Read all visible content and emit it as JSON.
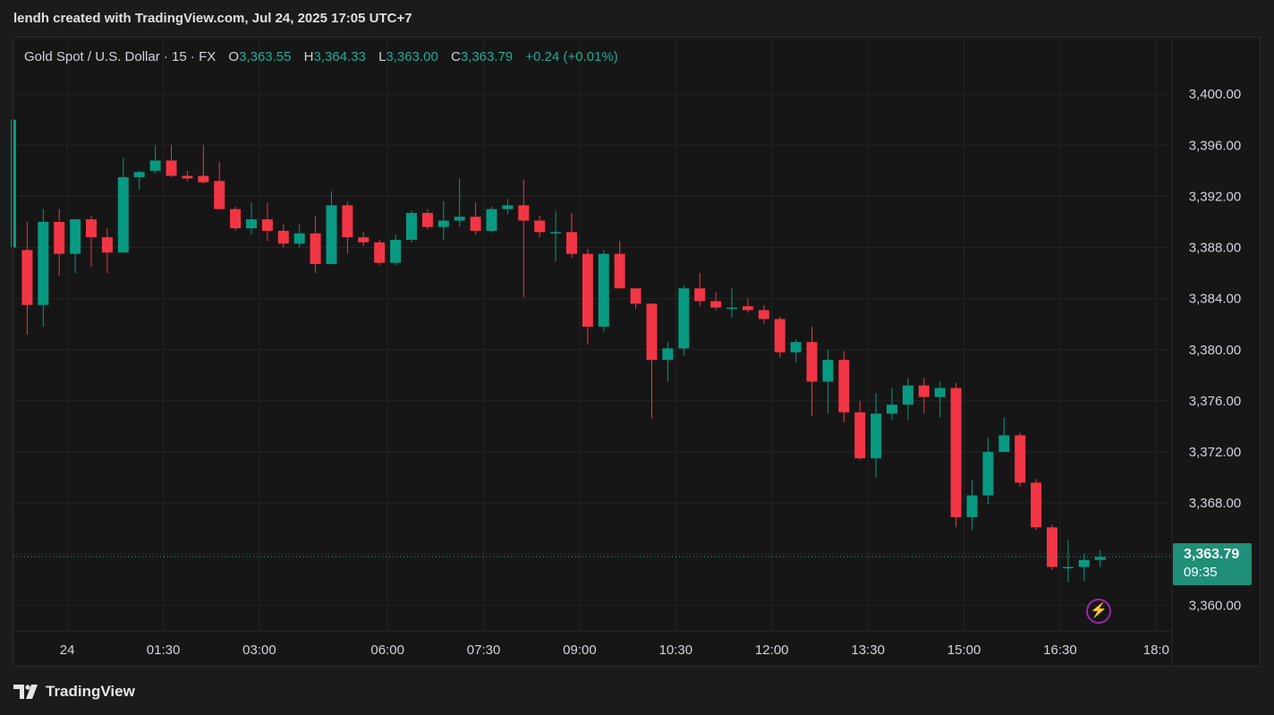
{
  "header": {
    "caption": "lendh created with TradingView.com, Jul 24, 2025 17:05 UTC+7"
  },
  "legend": {
    "symbol": "Gold Spot / U.S. Dollar · 15 · FX",
    "o_label": "O",
    "o_value": "3,363.55",
    "h_label": "H",
    "h_value": "3,364.33",
    "l_label": "L",
    "l_value": "3,363.00",
    "c_label": "C",
    "c_value": "3,363.79",
    "change": "+0.24 (+0.01%)"
  },
  "price_tag": {
    "price": "3,363.79",
    "countdown": "09:35"
  },
  "footer": {
    "brand": "TradingView"
  },
  "colors": {
    "up": "#089981",
    "down": "#f23645",
    "background": "#161616",
    "grid": "#242424",
    "accent": "#1f8f78"
  },
  "icons": {
    "footer_logo": "tradingview-logo-icon",
    "alert": "lightning-icon"
  },
  "chart_data": {
    "type": "candlestick",
    "interval": "15",
    "ylim": [
      3358,
      3404
    ],
    "y_ticks": [
      3360,
      3364,
      3368,
      3372,
      3376,
      3380,
      3384,
      3388,
      3392,
      3396,
      3400
    ],
    "y_tick_labels": [
      "3,360.00",
      "3,364.00",
      "3,368.00",
      "3,372.00",
      "3,376.00",
      "3,380.00",
      "3,384.00",
      "3,388.00",
      "3,392.00",
      "3,396.00",
      "3,400.00"
    ],
    "x_ticks": [
      {
        "label": "24",
        "index": 3.5
      },
      {
        "label": "01:30",
        "index": 9.5
      },
      {
        "label": "03:00",
        "index": 15.5
      },
      {
        "label": "06:00",
        "index": 23.5
      },
      {
        "label": "07:30",
        "index": 29.5
      },
      {
        "label": "09:00",
        "index": 35.5
      },
      {
        "label": "10:30",
        "index": 41.5
      },
      {
        "label": "12:00",
        "index": 47.5
      },
      {
        "label": "13:30",
        "index": 53.5
      },
      {
        "label": "15:00",
        "index": 59.5
      },
      {
        "label": "16:30",
        "index": 65.5
      },
      {
        "label": "18:0",
        "index": 71.5
      }
    ],
    "last_price": 3363.79,
    "candles": [
      {
        "o": 3388.0,
        "h": 3398.0,
        "l": 3388.0,
        "c": 3398.0
      },
      {
        "o": 3387.8,
        "h": 3390.0,
        "l": 3381.2,
        "c": 3383.5
      },
      {
        "o": 3383.5,
        "h": 3391.0,
        "l": 3381.8,
        "c": 3390.0
      },
      {
        "o": 3390.0,
        "h": 3391.0,
        "l": 3385.8,
        "c": 3387.5
      },
      {
        "o": 3387.5,
        "h": 3390.2,
        "l": 3386.0,
        "c": 3390.2
      },
      {
        "o": 3390.2,
        "h": 3390.5,
        "l": 3386.5,
        "c": 3388.8
      },
      {
        "o": 3388.8,
        "h": 3389.5,
        "l": 3386.0,
        "c": 3387.6
      },
      {
        "o": 3387.6,
        "h": 3395.0,
        "l": 3387.6,
        "c": 3393.5
      },
      {
        "o": 3393.5,
        "h": 3394.0,
        "l": 3392.5,
        "c": 3393.9
      },
      {
        "o": 3394.0,
        "h": 3396.0,
        "l": 3393.8,
        "c": 3394.8
      },
      {
        "o": 3394.8,
        "h": 3396.0,
        "l": 3393.5,
        "c": 3393.6
      },
      {
        "o": 3393.6,
        "h": 3394.0,
        "l": 3393.2,
        "c": 3393.4
      },
      {
        "o": 3393.6,
        "h": 3396.0,
        "l": 3393.0,
        "c": 3393.1
      },
      {
        "o": 3393.2,
        "h": 3394.7,
        "l": 3391.0,
        "c": 3391.0
      },
      {
        "o": 3391.0,
        "h": 3391.2,
        "l": 3389.3,
        "c": 3389.5
      },
      {
        "o": 3389.5,
        "h": 3391.5,
        "l": 3389.0,
        "c": 3390.2
      },
      {
        "o": 3390.2,
        "h": 3391.5,
        "l": 3388.5,
        "c": 3389.3
      },
      {
        "o": 3389.3,
        "h": 3389.8,
        "l": 3388.0,
        "c": 3388.3
      },
      {
        "o": 3388.3,
        "h": 3389.8,
        "l": 3388.0,
        "c": 3389.1
      },
      {
        "o": 3389.1,
        "h": 3390.5,
        "l": 3386.0,
        "c": 3386.7
      },
      {
        "o": 3386.7,
        "h": 3392.4,
        "l": 3386.7,
        "c": 3391.3
      },
      {
        "o": 3391.3,
        "h": 3391.6,
        "l": 3387.5,
        "c": 3388.8
      },
      {
        "o": 3388.8,
        "h": 3389.2,
        "l": 3388.1,
        "c": 3388.4
      },
      {
        "o": 3388.4,
        "h": 3388.6,
        "l": 3386.6,
        "c": 3386.8
      },
      {
        "o": 3386.8,
        "h": 3389.0,
        "l": 3386.6,
        "c": 3388.6
      },
      {
        "o": 3388.6,
        "h": 3390.9,
        "l": 3388.4,
        "c": 3390.7
      },
      {
        "o": 3390.7,
        "h": 3391.0,
        "l": 3389.4,
        "c": 3389.6
      },
      {
        "o": 3389.6,
        "h": 3391.6,
        "l": 3388.6,
        "c": 3390.1
      },
      {
        "o": 3390.1,
        "h": 3393.4,
        "l": 3389.6,
        "c": 3390.4
      },
      {
        "o": 3390.4,
        "h": 3391.5,
        "l": 3389.0,
        "c": 3389.3
      },
      {
        "o": 3389.3,
        "h": 3391.2,
        "l": 3389.2,
        "c": 3391.0
      },
      {
        "o": 3391.0,
        "h": 3391.8,
        "l": 3390.6,
        "c": 3391.3
      },
      {
        "o": 3391.3,
        "h": 3393.3,
        "l": 3384.1,
        "c": 3390.1
      },
      {
        "o": 3390.1,
        "h": 3390.5,
        "l": 3388.8,
        "c": 3389.2
      },
      {
        "o": 3389.2,
        "h": 3390.8,
        "l": 3386.9,
        "c": 3389.2
      },
      {
        "o": 3389.2,
        "h": 3390.7,
        "l": 3387.2,
        "c": 3387.5
      },
      {
        "o": 3387.5,
        "h": 3387.9,
        "l": 3380.4,
        "c": 3381.8
      },
      {
        "o": 3381.8,
        "h": 3387.8,
        "l": 3381.4,
        "c": 3387.5
      },
      {
        "o": 3387.5,
        "h": 3388.5,
        "l": 3384.9,
        "c": 3384.8
      },
      {
        "o": 3384.8,
        "h": 3384.8,
        "l": 3383.2,
        "c": 3383.6
      },
      {
        "o": 3383.6,
        "h": 3383.6,
        "l": 3374.6,
        "c": 3379.2
      },
      {
        "o": 3379.2,
        "h": 3380.6,
        "l": 3377.5,
        "c": 3380.1
      },
      {
        "o": 3380.1,
        "h": 3385.0,
        "l": 3379.5,
        "c": 3384.8
      },
      {
        "o": 3384.8,
        "h": 3386.0,
        "l": 3383.4,
        "c": 3383.8
      },
      {
        "o": 3383.8,
        "h": 3384.5,
        "l": 3383.1,
        "c": 3383.3
      },
      {
        "o": 3383.3,
        "h": 3384.8,
        "l": 3382.5,
        "c": 3383.3
      },
      {
        "o": 3383.4,
        "h": 3384.0,
        "l": 3382.9,
        "c": 3383.1
      },
      {
        "o": 3383.1,
        "h": 3383.5,
        "l": 3382.0,
        "c": 3382.4
      },
      {
        "o": 3382.4,
        "h": 3382.6,
        "l": 3379.4,
        "c": 3379.8
      },
      {
        "o": 3379.8,
        "h": 3380.8,
        "l": 3379.0,
        "c": 3380.6
      },
      {
        "o": 3380.6,
        "h": 3381.8,
        "l": 3374.8,
        "c": 3377.5
      },
      {
        "o": 3377.5,
        "h": 3380.0,
        "l": 3375.0,
        "c": 3379.2
      },
      {
        "o": 3379.2,
        "h": 3379.9,
        "l": 3374.3,
        "c": 3375.1
      },
      {
        "o": 3375.1,
        "h": 3376.0,
        "l": 3371.4,
        "c": 3371.5
      },
      {
        "o": 3371.5,
        "h": 3376.6,
        "l": 3370.0,
        "c": 3375.0
      },
      {
        "o": 3375.0,
        "h": 3377.0,
        "l": 3374.5,
        "c": 3375.7
      },
      {
        "o": 3375.7,
        "h": 3377.8,
        "l": 3374.5,
        "c": 3377.2
      },
      {
        "o": 3377.2,
        "h": 3377.8,
        "l": 3375.0,
        "c": 3376.3
      },
      {
        "o": 3376.3,
        "h": 3377.5,
        "l": 3374.7,
        "c": 3377.0
      },
      {
        "o": 3377.0,
        "h": 3377.4,
        "l": 3366.1,
        "c": 3366.9
      },
      {
        "o": 3366.9,
        "h": 3369.8,
        "l": 3365.9,
        "c": 3368.6
      },
      {
        "o": 3368.6,
        "h": 3373.1,
        "l": 3367.9,
        "c": 3372.0
      },
      {
        "o": 3372.0,
        "h": 3374.7,
        "l": 3372.0,
        "c": 3373.3
      },
      {
        "o": 3373.3,
        "h": 3373.5,
        "l": 3369.3,
        "c": 3369.6
      },
      {
        "o": 3369.6,
        "h": 3369.9,
        "l": 3365.9,
        "c": 3366.1
      },
      {
        "o": 3366.1,
        "h": 3366.3,
        "l": 3362.8,
        "c": 3363.0
      },
      {
        "o": 3363.0,
        "h": 3365.1,
        "l": 3361.8,
        "c": 3363.0
      },
      {
        "o": 3363.0,
        "h": 3364.0,
        "l": 3361.9,
        "c": 3363.55
      },
      {
        "o": 3363.55,
        "h": 3364.33,
        "l": 3363.0,
        "c": 3363.79
      }
    ]
  }
}
